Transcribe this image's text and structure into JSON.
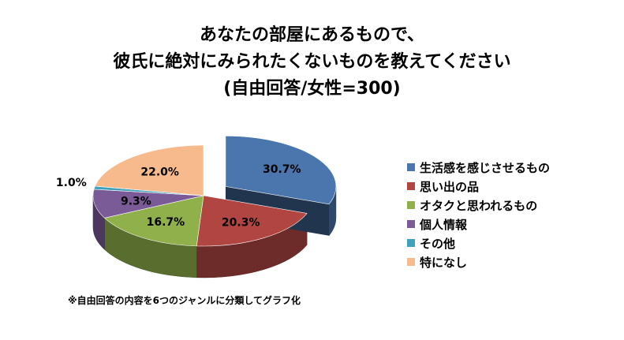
{
  "chart_data": {
    "type": "pie",
    "title_lines": [
      "あなたの部屋にあるもので、",
      "彼氏に絶対にみられたくないものを教えてください",
      "(自由回答/女性=300)"
    ],
    "labels": [
      "生活感を感じさせるもの",
      "思い出の品",
      "オタクと思われるもの",
      "個人情報",
      "その他",
      "特になし"
    ],
    "values": [
      30.7,
      20.3,
      16.7,
      9.3,
      1.0,
      22.0
    ],
    "value_labels": [
      "30.7%",
      "20.3%",
      "16.7%",
      "9.3%",
      "1.0%",
      "22.0%"
    ],
    "colors": [
      "#4a76ad",
      "#b04542",
      "#8fb04a",
      "#7b5a98",
      "#41a2bb",
      "#f7ba8c"
    ],
    "exploded": "生活感を感じさせるもの",
    "style": "3d",
    "legend_position": "right"
  },
  "footnote": "※自由回答の内容を6つのジャンルに分類してグラフ化"
}
